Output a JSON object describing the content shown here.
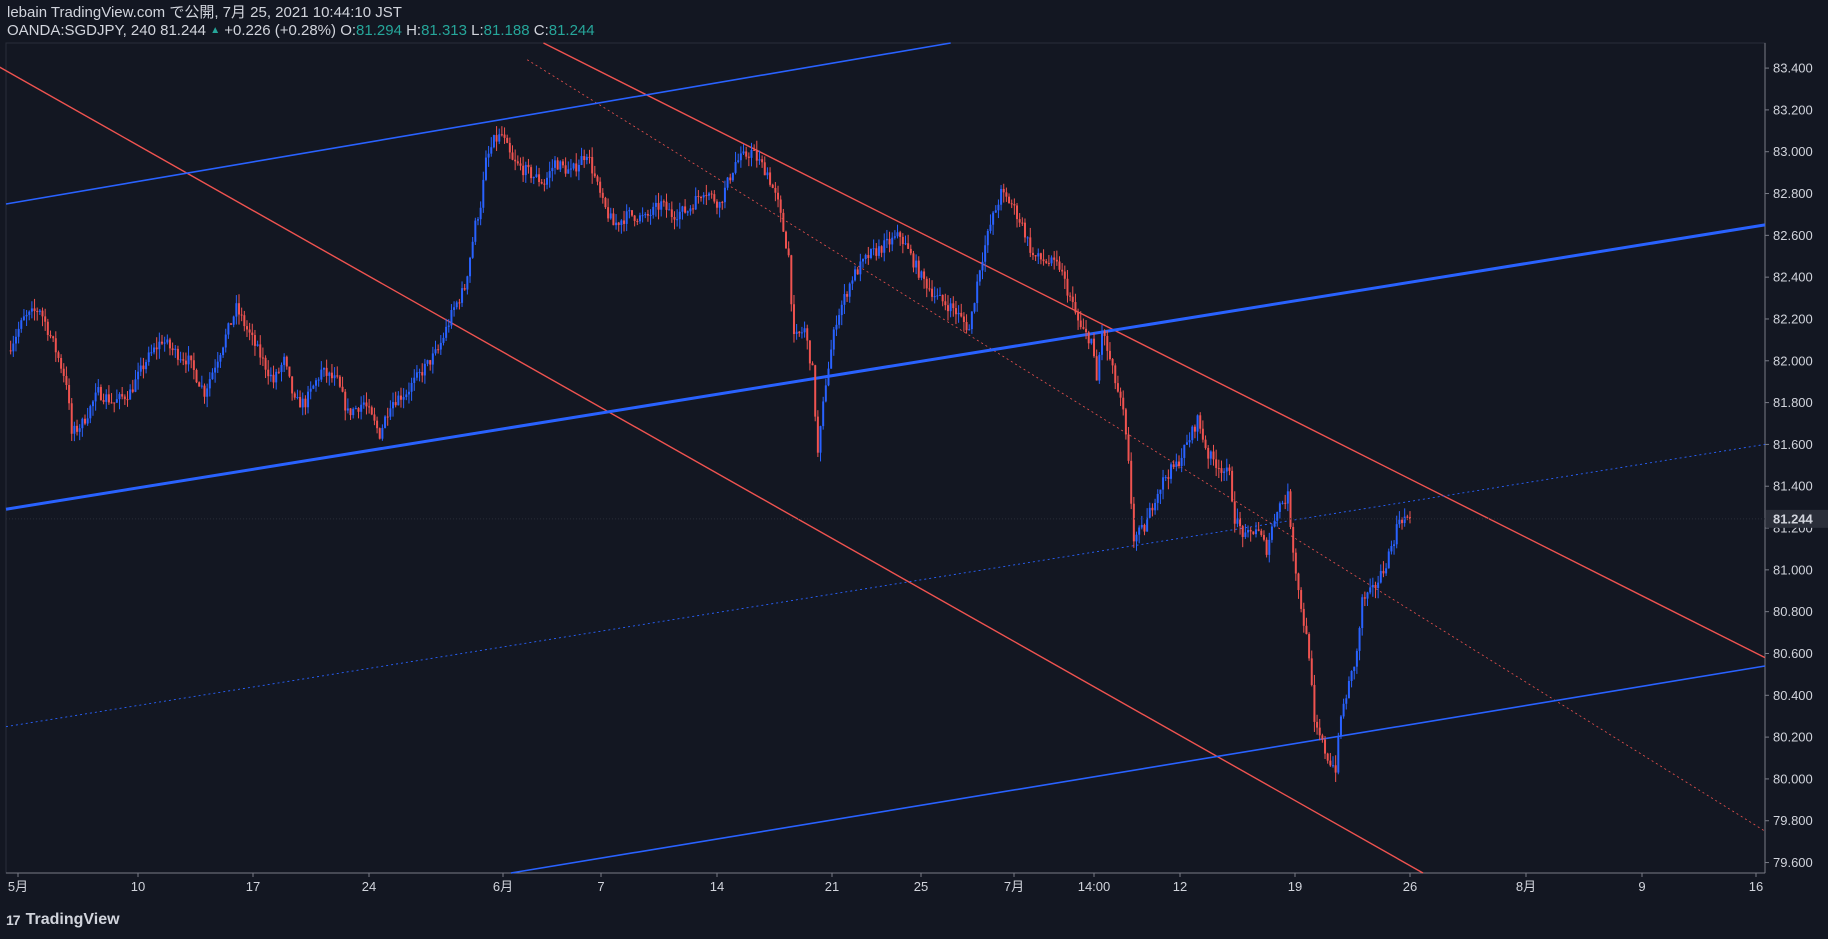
{
  "header": {
    "publish_info": "lebain TradingView.com で公開, 7月 25, 2021 10:44:10 JST",
    "symbol": "OANDA:SGDJPY, 240",
    "last": "81.244",
    "change_icon": "up-triangle-icon",
    "change_symbol": "▲",
    "change": "+0.226 (+0.28%)",
    "o_label": "O:",
    "o_value": "81.294",
    "h_label": "H:",
    "h_value": "81.313",
    "l_label": "L:",
    "l_value": "81.188",
    "c_label": "C:",
    "c_value": "81.244"
  },
  "footer": {
    "logo_icon": "tradingview-logo-icon",
    "logo_glyph": "17",
    "brand": "TradingView"
  },
  "colors": {
    "background": "#131722",
    "up": "#2962ff",
    "down": "#ef5350",
    "text": "#d1d4dc",
    "accent_green": "#26a69a"
  },
  "chart_data": {
    "type": "candlestick",
    "y_axis": {
      "range": [
        79.55,
        83.52
      ],
      "ticks": [
        "83.400",
        "83.200",
        "83.000",
        "82.800",
        "82.600",
        "82.400",
        "82.200",
        "82.000",
        "81.800",
        "81.600",
        "81.400",
        "81.200",
        "81.000",
        "80.800",
        "80.600",
        "80.400",
        "80.200",
        "80.000",
        "79.800",
        "79.600"
      ],
      "last_price_label": "81.244"
    },
    "x_axis": {
      "ticks": [
        "5月",
        "10",
        "17",
        "24",
        "6月",
        "7",
        "14",
        "21",
        "25",
        "7月",
        "14:00",
        "12",
        "19",
        "26",
        "8月",
        "9",
        "16"
      ]
    },
    "grid": false,
    "price_path": [
      [
        0,
        82.05
      ],
      [
        6,
        82.2
      ],
      [
        12,
        82.25
      ],
      [
        18,
        82.05
      ],
      [
        22,
        81.9
      ],
      [
        24,
        81.65
      ],
      [
        28,
        81.7
      ],
      [
        34,
        81.85
      ],
      [
        40,
        81.8
      ],
      [
        46,
        81.85
      ],
      [
        52,
        82.0
      ],
      [
        58,
        82.1
      ],
      [
        62,
        82.05
      ],
      [
        68,
        82.0
      ],
      [
        74,
        81.85
      ],
      [
        80,
        82.05
      ],
      [
        86,
        82.25
      ],
      [
        90,
        82.15
      ],
      [
        94,
        82.05
      ],
      [
        100,
        81.9
      ],
      [
        104,
        82.0
      ],
      [
        108,
        81.8
      ],
      [
        112,
        81.8
      ],
      [
        118,
        81.95
      ],
      [
        124,
        81.9
      ],
      [
        128,
        81.75
      ],
      [
        134,
        81.8
      ],
      [
        140,
        81.65
      ],
      [
        144,
        81.8
      ],
      [
        150,
        81.85
      ],
      [
        156,
        81.95
      ],
      [
        162,
        82.05
      ],
      [
        168,
        82.25
      ],
      [
        172,
        82.35
      ],
      [
        176,
        82.65
      ],
      [
        178,
        82.75
      ],
      [
        180,
        82.95
      ],
      [
        183,
        83.05
      ],
      [
        186,
        83.08
      ],
      [
        190,
        82.95
      ],
      [
        196,
        82.9
      ],
      [
        202,
        82.85
      ],
      [
        206,
        82.95
      ],
      [
        212,
        82.9
      ],
      [
        218,
        83.0
      ],
      [
        224,
        82.75
      ],
      [
        228,
        82.65
      ],
      [
        234,
        82.7
      ],
      [
        240,
        82.68
      ],
      [
        246,
        82.75
      ],
      [
        250,
        82.7
      ],
      [
        256,
        82.72
      ],
      [
        262,
        82.82
      ],
      [
        268,
        82.75
      ],
      [
        274,
        82.95
      ],
      [
        280,
        83.0
      ],
      [
        286,
        82.9
      ],
      [
        290,
        82.75
      ],
      [
        294,
        82.5
      ],
      [
        296,
        82.1
      ],
      [
        300,
        82.15
      ],
      [
        303,
        81.95
      ],
      [
        305,
        81.55
      ],
      [
        308,
        81.9
      ],
      [
        312,
        82.2
      ],
      [
        318,
        82.4
      ],
      [
        324,
        82.5
      ],
      [
        330,
        82.55
      ],
      [
        336,
        82.6
      ],
      [
        340,
        82.5
      ],
      [
        344,
        82.4
      ],
      [
        350,
        82.3
      ],
      [
        356,
        82.25
      ],
      [
        362,
        82.15
      ],
      [
        366,
        82.45
      ],
      [
        370,
        82.65
      ],
      [
        374,
        82.8
      ],
      [
        378,
        82.75
      ],
      [
        382,
        82.65
      ],
      [
        386,
        82.5
      ],
      [
        390,
        82.48
      ],
      [
        396,
        82.45
      ],
      [
        400,
        82.3
      ],
      [
        404,
        82.15
      ],
      [
        408,
        82.1
      ],
      [
        410,
        81.9
      ],
      [
        412,
        82.15
      ],
      [
        416,
        81.95
      ],
      [
        420,
        81.75
      ],
      [
        422,
        81.5
      ],
      [
        424,
        81.15
      ],
      [
        428,
        81.2
      ],
      [
        432,
        81.35
      ],
      [
        436,
        81.45
      ],
      [
        440,
        81.5
      ],
      [
        444,
        81.6
      ],
      [
        448,
        81.72
      ],
      [
        452,
        81.55
      ],
      [
        456,
        81.5
      ],
      [
        460,
        81.45
      ],
      [
        462,
        81.25
      ],
      [
        466,
        81.15
      ],
      [
        470,
        81.2
      ],
      [
        474,
        81.1
      ],
      [
        478,
        81.3
      ],
      [
        482,
        81.35
      ],
      [
        484,
        81.1
      ],
      [
        486,
        80.9
      ],
      [
        490,
        80.6
      ],
      [
        492,
        80.25
      ],
      [
        494,
        80.2
      ],
      [
        497,
        80.1
      ],
      [
        500,
        80.05
      ],
      [
        502,
        80.3
      ],
      [
        505,
        80.45
      ],
      [
        508,
        80.6
      ],
      [
        510,
        80.85
      ],
      [
        514,
        80.9
      ],
      [
        518,
        81.0
      ],
      [
        522,
        81.15
      ],
      [
        524,
        81.25
      ],
      [
        528,
        81.244
      ]
    ],
    "trend_lines": [
      {
        "color": "#ef5350",
        "width": 1.4,
        "points": [
          [
            "2021-04-27",
            83.52
          ],
          [
            "2021-07-26",
            79.55
          ]
        ]
      },
      {
        "color": "#ef5350",
        "width": 1.4,
        "points": [
          [
            "2021-06-02",
            83.52
          ],
          [
            "2021-08-16",
            80.58
          ]
        ]
      },
      {
        "color": "#ef5350",
        "width": 0.8,
        "dashed": true,
        "points": [
          [
            "2021-06-01",
            83.44
          ],
          [
            "2021-08-16",
            79.75
          ]
        ]
      },
      {
        "color": "#2962ff",
        "width": 1.6,
        "points": [
          [
            "2021-04-30",
            82.75
          ],
          [
            "2021-06-27",
            83.52
          ]
        ]
      },
      {
        "color": "#2962ff",
        "width": 3,
        "points": [
          [
            "2021-04-30",
            81.29
          ],
          [
            "2021-08-16",
            82.65
          ]
        ]
      },
      {
        "color": "#2962ff",
        "width": 0.9,
        "dashed": true,
        "points": [
          [
            "2021-04-30",
            80.25
          ],
          [
            "2021-08-16",
            81.6
          ]
        ]
      },
      {
        "color": "#2962ff",
        "width": 1.6,
        "points": [
          [
            "2021-05-31",
            79.55
          ],
          [
            "2021-08-16",
            80.54
          ]
        ]
      }
    ]
  }
}
